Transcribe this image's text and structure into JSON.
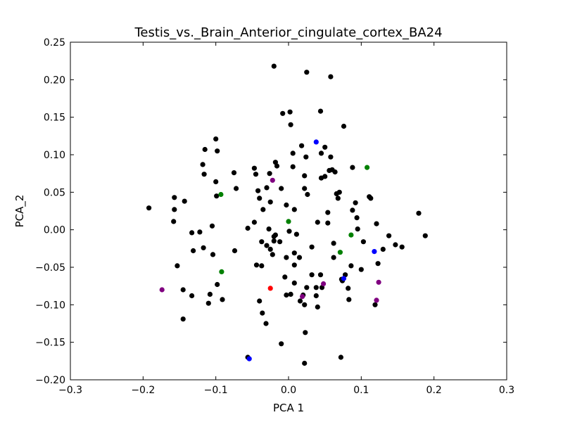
{
  "chart_data": {
    "type": "scatter",
    "title": "Testis_vs._Brain_Anterior_cingulate_cortex_BA24",
    "xlabel": "PCA 1",
    "ylabel": "PCA_2",
    "xlim": [
      -0.3,
      0.3
    ],
    "ylim": [
      -0.2,
      0.25
    ],
    "xticks": [
      -0.3,
      -0.2,
      -0.1,
      0.0,
      0.1,
      0.2,
      0.3
    ],
    "xtick_labels": [
      "−0.3",
      "−0.2",
      "−0.1",
      "0.0",
      "0.1",
      "0.2",
      "0.3"
    ],
    "yticks": [
      -0.2,
      -0.15,
      -0.1,
      -0.05,
      0.0,
      0.05,
      0.1,
      0.15,
      0.2,
      0.25
    ],
    "ytick_labels": [
      "−0.20",
      "−0.15",
      "−0.10",
      "−0.05",
      "0.00",
      "0.05",
      "0.10",
      "0.15",
      "0.20",
      "0.25"
    ],
    "grid": false,
    "series": [
      {
        "color": "#000000",
        "points": [
          [
            -0.02,
            0.218
          ],
          [
            0.025,
            0.21
          ],
          [
            0.058,
            0.204
          ],
          [
            0.044,
            0.158
          ],
          [
            -0.008,
            0.155
          ],
          [
            0.002,
            0.157
          ],
          [
            0.003,
            0.14
          ],
          [
            0.076,
            0.138
          ],
          [
            -0.1,
            0.121
          ],
          [
            -0.115,
            0.107
          ],
          [
            -0.098,
            0.105
          ],
          [
            0.018,
            0.112
          ],
          [
            0.05,
            0.11
          ],
          [
            0.058,
            0.097
          ],
          [
            0.045,
            0.102
          ],
          [
            0.006,
            0.102
          ],
          [
            -0.118,
            0.087
          ],
          [
            -0.018,
            0.09
          ],
          [
            0.024,
            0.097
          ],
          [
            0.088,
            0.083
          ],
          [
            -0.047,
            0.082
          ],
          [
            -0.016,
            0.085
          ],
          [
            0.006,
            0.084
          ],
          [
            -0.116,
            0.074
          ],
          [
            -0.075,
            0.076
          ],
          [
            -0.045,
            0.074
          ],
          [
            -0.026,
            0.075
          ],
          [
            0.022,
            0.072
          ],
          [
            0.06,
            0.08
          ],
          [
            0.056,
            0.079
          ],
          [
            0.064,
            0.077
          ],
          [
            0.045,
            0.069
          ],
          [
            0.05,
            0.071
          ],
          [
            -0.1,
            0.064
          ],
          [
            -0.072,
            0.055
          ],
          [
            -0.042,
            0.052
          ],
          [
            -0.03,
            0.056
          ],
          [
            -0.01,
            0.055
          ],
          [
            0.022,
            0.055
          ],
          [
            0.026,
            0.047
          ],
          [
            0.066,
            0.048
          ],
          [
            0.068,
            0.042
          ],
          [
            0.07,
            0.05
          ],
          [
            0.111,
            0.044
          ],
          [
            0.113,
            0.042
          ],
          [
            -0.157,
            0.043
          ],
          [
            -0.143,
            0.038
          ],
          [
            -0.099,
            0.045
          ],
          [
            -0.04,
            0.042
          ],
          [
            -0.025,
            0.037
          ],
          [
            -0.035,
            0.027
          ],
          [
            -0.003,
            0.033
          ],
          [
            0.008,
            0.027
          ],
          [
            0.054,
            0.023
          ],
          [
            0.092,
            0.036
          ],
          [
            0.088,
            0.026
          ],
          [
            -0.192,
            0.029
          ],
          [
            -0.157,
            0.027
          ],
          [
            -0.158,
            0.011
          ],
          [
            -0.047,
            0.01
          ],
          [
            -0.056,
            0.002
          ],
          [
            0.04,
            0.01
          ],
          [
            0.054,
            0.009
          ],
          [
            0.094,
            0.016
          ],
          [
            0.121,
            0.008
          ],
          [
            0.179,
            0.022
          ],
          [
            -0.133,
            -0.004
          ],
          [
            -0.122,
            -0.003
          ],
          [
            -0.105,
            0.005
          ],
          [
            -0.027,
            0.001
          ],
          [
            -0.018,
            -0.007
          ],
          [
            0.001,
            -0.002
          ],
          [
            0.011,
            -0.006
          ],
          [
            0.095,
            0.001
          ],
          [
            0.138,
            -0.008
          ],
          [
            0.188,
            -0.008
          ],
          [
            -0.131,
            -0.028
          ],
          [
            -0.117,
            -0.024
          ],
          [
            -0.074,
            -0.028
          ],
          [
            -0.037,
            -0.016
          ],
          [
            -0.03,
            -0.021
          ],
          [
            -0.025,
            -0.026
          ],
          [
            -0.02,
            -0.009
          ],
          [
            -0.012,
            -0.016
          ],
          [
            0.032,
            -0.023
          ],
          [
            0.062,
            -0.018
          ],
          [
            0.103,
            -0.016
          ],
          [
            0.13,
            -0.026
          ],
          [
            0.147,
            -0.02
          ],
          [
            0.156,
            -0.023
          ],
          [
            -0.104,
            -0.033
          ],
          [
            -0.022,
            -0.033
          ],
          [
            -0.02,
            -0.015
          ],
          [
            -0.003,
            -0.037
          ],
          [
            0.008,
            -0.031
          ],
          [
            0.015,
            -0.037
          ],
          [
            0.062,
            -0.037
          ],
          [
            0.123,
            -0.045
          ],
          [
            -0.153,
            -0.048
          ],
          [
            -0.044,
            -0.047
          ],
          [
            -0.037,
            -0.048
          ],
          [
            0.008,
            -0.047
          ],
          [
            0.086,
            -0.048
          ],
          [
            0.1,
            -0.053
          ],
          [
            -0.005,
            -0.063
          ],
          [
            0.032,
            -0.06
          ],
          [
            0.044,
            -0.06
          ],
          [
            0.073,
            -0.066
          ],
          [
            0.078,
            -0.06
          ],
          [
            0.074,
            -0.068
          ],
          [
            -0.098,
            -0.073
          ],
          [
            -0.145,
            -0.08
          ],
          [
            -0.108,
            -0.086
          ],
          [
            -0.133,
            -0.088
          ],
          [
            0.008,
            -0.071
          ],
          [
            0.025,
            -0.077
          ],
          [
            0.038,
            -0.077
          ],
          [
            0.082,
            -0.078
          ],
          [
            0.046,
            -0.077
          ],
          [
            -0.04,
            -0.095
          ],
          [
            -0.091,
            -0.093
          ],
          [
            -0.11,
            -0.098
          ],
          [
            -0.003,
            -0.087
          ],
          [
            0.003,
            -0.086
          ],
          [
            0.02,
            -0.087
          ],
          [
            0.038,
            -0.088
          ],
          [
            0.016,
            -0.095
          ],
          [
            0.022,
            -0.1
          ],
          [
            0.04,
            -0.103
          ],
          [
            0.083,
            -0.093
          ],
          [
            0.119,
            -0.1
          ],
          [
            -0.036,
            -0.111
          ],
          [
            -0.145,
            -0.119
          ],
          [
            -0.031,
            -0.125
          ],
          [
            0.023,
            -0.137
          ],
          [
            -0.01,
            -0.152
          ],
          [
            -0.056,
            -0.17
          ],
          [
            0.072,
            -0.17
          ],
          [
            0.022,
            -0.178
          ]
        ]
      },
      {
        "color": "#0000ff",
        "points": [
          [
            0.038,
            0.117
          ],
          [
            0.118,
            -0.029
          ],
          [
            0.076,
            -0.065
          ],
          [
            -0.054,
            -0.172
          ]
        ]
      },
      {
        "color": "#008000",
        "points": [
          [
            0.108,
            0.083
          ],
          [
            -0.093,
            0.047
          ],
          [
            0.0,
            0.011
          ],
          [
            0.086,
            -0.007
          ],
          [
            0.071,
            -0.03
          ],
          [
            -0.092,
            -0.056
          ]
        ]
      },
      {
        "color": "#800080",
        "points": [
          [
            -0.022,
            0.066
          ],
          [
            -0.174,
            -0.08
          ],
          [
            0.048,
            -0.072
          ],
          [
            0.124,
            -0.07
          ],
          [
            0.019,
            -0.089
          ],
          [
            0.121,
            -0.094
          ]
        ]
      },
      {
        "color": "#ff0000",
        "points": [
          [
            -0.025,
            -0.078
          ]
        ]
      }
    ]
  }
}
